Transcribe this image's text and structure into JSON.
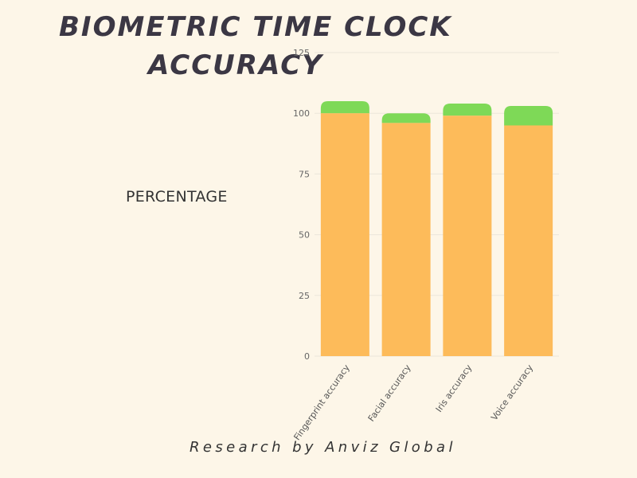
{
  "title_lines": [
    "BIOMETRIC TIME CLOCK",
    "ACCURACY"
  ],
  "footer": "Research by Anviz Global",
  "colors": {
    "background": "#fdf6e8",
    "base": "#fdbb5a",
    "top": "#7ed957",
    "grid": "#ece6da",
    "title": "#3b3744"
  },
  "chart_data": {
    "type": "bar",
    "stacked": true,
    "title": "BIOMETRIC TIME CLOCK ACCURACY",
    "xlabel": "",
    "ylabel": "PERCENTAGE",
    "categories": [
      "Fingerprint accuracy",
      "Facial accuracy",
      "Iris accuracy",
      "Voice accuracy"
    ],
    "series": [
      {
        "color": "#fdbb5a",
        "values": [
          100,
          96,
          99,
          95
        ]
      },
      {
        "color": "#7ed957",
        "values": [
          5,
          4,
          5,
          8
        ]
      }
    ],
    "ylim": [
      0,
      125
    ],
    "yticks": [
      0,
      25,
      50,
      75,
      100,
      125
    ],
    "grid": true,
    "legend": "none"
  }
}
